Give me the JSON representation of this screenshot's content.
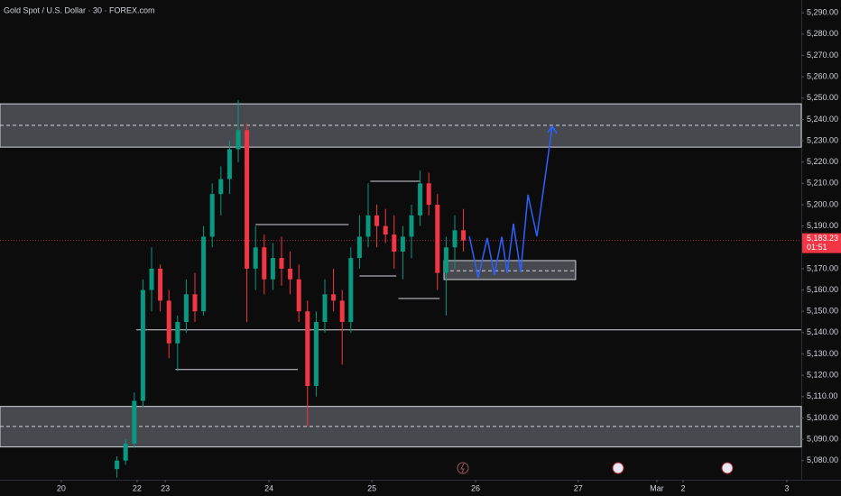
{
  "chart_data": {
    "type": "candlestick",
    "title": "Gold Spot / U.S. Dollar · 30 · FOREX.com",
    "xlim": [
      0,
      370
    ],
    "ylim": [
      5071,
      5296
    ],
    "xticks": [
      {
        "value": 28.3,
        "label": "20"
      },
      {
        "value": 63.3,
        "label": "22"
      },
      {
        "value": 76.3,
        "label": "23"
      },
      {
        "value": 124.2,
        "label": "24"
      },
      {
        "value": 171.7,
        "label": "25"
      },
      {
        "value": 219.6,
        "label": "26"
      },
      {
        "value": 267,
        "label": "27"
      },
      {
        "value": 303.3,
        "label": "Mar"
      },
      {
        "value": 315.4,
        "label": "2"
      },
      {
        "value": 363.3,
        "label": "3"
      }
    ],
    "yticks": [
      {
        "value": 5290,
        "label": "5,290.00"
      },
      {
        "value": 5280,
        "label": "5,280.00"
      },
      {
        "value": 5270,
        "label": "5,270.00"
      },
      {
        "value": 5260,
        "label": "5,260.00"
      },
      {
        "value": 5250,
        "label": "5,250.00"
      },
      {
        "value": 5240,
        "label": "5,240.00"
      },
      {
        "value": 5230,
        "label": "5,230.00"
      },
      {
        "value": 5220,
        "label": "5,220.00"
      },
      {
        "value": 5210,
        "label": "5,210.00"
      },
      {
        "value": 5200,
        "label": "5,200.00"
      },
      {
        "value": 5190,
        "label": "5,190.00"
      },
      {
        "value": 5170,
        "label": "5,170.00"
      },
      {
        "value": 5160,
        "label": "5,160.00"
      },
      {
        "value": 5150,
        "label": "5,150.00"
      },
      {
        "value": 5140,
        "label": "5,140.00"
      },
      {
        "value": 5130,
        "label": "5,130.00"
      },
      {
        "value": 5120,
        "label": "5,120.00"
      },
      {
        "value": 5110,
        "label": "5,110.00"
      },
      {
        "value": 5100,
        "label": "5,100.00"
      },
      {
        "value": 5090,
        "label": "5,090.00"
      },
      {
        "value": 5080,
        "label": "5,080.00"
      }
    ],
    "up_color": "#089981",
    "down_color": "#f23645",
    "x": [
      54,
      58,
      62,
      66,
      70,
      74,
      78,
      82,
      86,
      90,
      94,
      98,
      102,
      106,
      110,
      114,
      118,
      122,
      126,
      130,
      134,
      138,
      142,
      146,
      150,
      154,
      158,
      162,
      166,
      170,
      174,
      178,
      182,
      186,
      190,
      194,
      198,
      202,
      206,
      210,
      214
    ],
    "open": [
      5076,
      5080,
      5088,
      5108,
      5160,
      5170,
      5155,
      5135,
      5145,
      5158,
      5150,
      5185,
      5205,
      5212,
      5226,
      5235,
      5170,
      5180,
      5165,
      5175,
      5170,
      5165,
      5150,
      5115,
      5145,
      5158,
      5155,
      5145,
      5175,
      5185,
      5195,
      5190,
      5186,
      5178,
      5185,
      5195,
      5210,
      5200,
      5168,
      5180,
      5188
    ],
    "high": [
      5082,
      5090,
      5112,
      5165,
      5180,
      5172,
      5160,
      5148,
      5165,
      5168,
      5190,
      5210,
      5218,
      5230,
      5249,
      5238,
      5190,
      5186,
      5182,
      5185,
      5178,
      5172,
      5155,
      5150,
      5165,
      5170,
      5160,
      5180,
      5195,
      5210,
      5200,
      5198,
      5195,
      5190,
      5200,
      5216,
      5215,
      5205,
      5185,
      5195,
      5198
    ],
    "low": [
      5072,
      5078,
      5086,
      5105,
      5150,
      5150,
      5128,
      5122,
      5140,
      5145,
      5148,
      5180,
      5195,
      5205,
      5220,
      5145,
      5160,
      5158,
      5160,
      5162,
      5158,
      5145,
      5096,
      5110,
      5140,
      5150,
      5125,
      5140,
      5170,
      5180,
      5180,
      5182,
      5170,
      5165,
      5175,
      5190,
      5195,
      5160,
      5148,
      5170,
      5178
    ],
    "close": [
      5080,
      5088,
      5108,
      5160,
      5170,
      5155,
      5135,
      5145,
      5158,
      5150,
      5185,
      5205,
      5212,
      5226,
      5235,
      5170,
      5180,
      5165,
      5175,
      5170,
      5165,
      5150,
      5115,
      5145,
      5158,
      5155,
      5145,
      5175,
      5185,
      5195,
      5190,
      5186,
      5178,
      5185,
      5195,
      5210,
      5200,
      5168,
      5180,
      5188,
      5183.23
    ],
    "last_price": {
      "value": 5183.23,
      "label": "5,183.23"
    },
    "countdown": "01:51",
    "zones": [
      {
        "low": 5227,
        "high": 5247.3,
        "mid": 5237.2,
        "x": [
          0,
          370
        ]
      },
      {
        "low": 5086.4,
        "high": 5105.4,
        "mid": 5096,
        "x": [
          0,
          370
        ]
      },
      {
        "low": 5164.9,
        "high": 5173.8,
        "mid": 5169,
        "x": [
          205,
          265.8
        ]
      }
    ],
    "levels": [
      {
        "price": 5141.3,
        "x": [
          63,
          370
        ],
        "color": "#d1d4dc"
      },
      {
        "price": 5122.7,
        "x": [
          81,
          137.5
        ],
        "color": "#d1d4dc"
      },
      {
        "price": 5190.7,
        "x": [
          118,
          161
        ],
        "color": "#d1d4dc"
      },
      {
        "price": 5211,
        "x": [
          171,
          194
        ],
        "color": "#d1d4dc"
      },
      {
        "price": 5166.6,
        "x": [
          166,
          183
        ],
        "color": "#d1d4dc"
      },
      {
        "price": 5156,
        "x": [
          184,
          203
        ],
        "color": "#d1d4dc"
      }
    ],
    "projection": {
      "color": "#2962ff",
      "x": [
        216.7,
        220.8,
        225,
        228.3,
        231.7,
        234.2,
        237.1,
        240.4,
        243.8,
        247.9,
        255
      ],
      "y": [
        5185.2,
        5165.8,
        5184.4,
        5167,
        5185,
        5167.9,
        5191.1,
        5168.3,
        5204.7,
        5185.2,
        5236.8
      ]
    }
  }
}
